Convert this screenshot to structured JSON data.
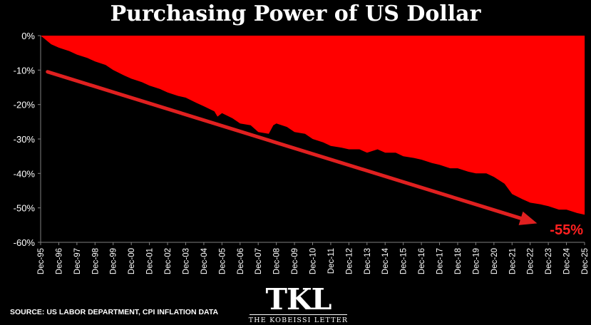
{
  "page": {
    "title": "Purchasing Power of US Dollar",
    "source": "SOURCE: US LABOR DEPARTMENT, CPI INFLATION DATA",
    "logo": {
      "mark": "TKL",
      "name": "THE KOBEISSI LETTER"
    }
  },
  "colors": {
    "background": "#000000",
    "fill": "#ff0000",
    "arrow": "#e02020",
    "annotation": "#ff2020",
    "text": "#ffffff",
    "axis": "#808080"
  },
  "chart_data": {
    "type": "area",
    "title": "Purchasing Power of US Dollar",
    "xlabel": "",
    "ylabel": "",
    "x_ticks": [
      "Dec-95",
      "Dec-96",
      "Dec-97",
      "Dec-98",
      "Dec-99",
      "Dec-00",
      "Dec-01",
      "Dec-02",
      "Dec-03",
      "Dec-04",
      "Dec-05",
      "Dec-06",
      "Dec-07",
      "Dec-08",
      "Dec-09",
      "Dec-10",
      "Dec-11",
      "Dec-12",
      "Dec-13",
      "Dec-14",
      "Dec-15",
      "Dec-16",
      "Dec-17",
      "Dec-18",
      "Dec-19",
      "Dec-20",
      "Dec-21",
      "Dec-22",
      "Dec-23",
      "Dec-24",
      "Dec-25"
    ],
    "y_ticks": [
      "0%",
      "-10%",
      "-20%",
      "-30%",
      "-40%",
      "-50%",
      "-60%"
    ],
    "xlim": [
      1995.917,
      2025.917
    ],
    "ylim": [
      -60,
      0
    ],
    "series": [
      {
        "x": [
          1995.92,
          1996.5,
          1996.92,
          1997.5,
          1997.92,
          1998.5,
          1998.92,
          1999.5,
          1999.92,
          2000.5,
          2000.92,
          2001.5,
          2001.92,
          2002.5,
          2002.92,
          2003.5,
          2003.92,
          2004.5,
          2004.92,
          2005.5,
          2005.67,
          2005.92,
          2006.5,
          2006.92,
          2007.5,
          2007.92,
          2008.5,
          2008.75,
          2008.92,
          2009.5,
          2009.92,
          2010.5,
          2010.92,
          2011.5,
          2011.92,
          2012.5,
          2012.92,
          2013.5,
          2013.92,
          2014.5,
          2014.92,
          2015.5,
          2015.92,
          2016.5,
          2016.92,
          2017.5,
          2017.92,
          2018.5,
          2018.92,
          2019.5,
          2019.92,
          2020.5,
          2020.92,
          2021.5,
          2021.92,
          2022.5,
          2022.92,
          2023.5,
          2023.92,
          2024.5,
          2024.92,
          2025.5,
          2025.92
        ],
        "y": [
          0,
          -2.5,
          -3.5,
          -4.5,
          -5.5,
          -6.5,
          -7.5,
          -8.5,
          -10,
          -11.5,
          -12.5,
          -13.5,
          -14.5,
          -15.5,
          -16.5,
          -17.5,
          -18,
          -19.5,
          -20.5,
          -22,
          -23.5,
          -22.5,
          -24,
          -25.5,
          -26,
          -28,
          -28.5,
          -26,
          -25.5,
          -26.5,
          -28,
          -28.5,
          -30,
          -31,
          -32,
          -32.5,
          -33,
          -33,
          -34,
          -33,
          -34,
          -34,
          -35,
          -35.5,
          -36,
          -37,
          -37.5,
          -38.5,
          -38.5,
          -39.5,
          -40,
          -40,
          -41,
          -43,
          -46,
          -47.5,
          -48.5,
          -49,
          -49.5,
          -50.5,
          -50.5,
          -51.5,
          -52
        ]
      }
    ],
    "arrow": {
      "from": [
        1996.3,
        -10.5
      ],
      "to": [
        2023.3,
        -54.5
      ]
    },
    "annotation": "-55%",
    "grid": false,
    "legend": "none"
  }
}
